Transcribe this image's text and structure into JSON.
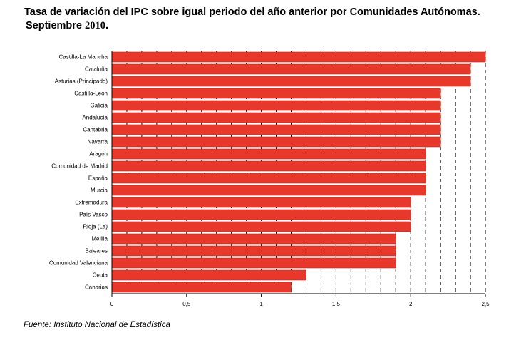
{
  "title": {
    "line1": "Tasa de variación del IPC sobre igual periodo del año anterior por Comunidades Autónomas.",
    "line2_prefix": "Septiembre ",
    "line2_year": "2010",
    "line2_suffix": "."
  },
  "source": "Fuente: Instituto Nacional de Estadística",
  "colors": {
    "bar": "#e8382c",
    "bar_border": "#c0281e",
    "grid": "#000000"
  },
  "chart_data": {
    "type": "bar",
    "orientation": "horizontal",
    "categories": [
      "Castilla-La Mancha",
      "Cataluña",
      "Asturias (Principado)",
      "Castilla-León",
      "Galicia",
      "Andalucía",
      "Cantabria",
      "Navarra",
      "Aragón",
      "Comunidad de Madrid",
      "España",
      "Murcia",
      "Extremadura",
      "País Vasco",
      "Rioja (La)",
      "Melilla",
      "Baleares",
      "Comunidad Valenciana",
      "Ceuta",
      "Canarias"
    ],
    "values": [
      2.5,
      2.4,
      2.4,
      2.2,
      2.2,
      2.2,
      2.2,
      2.2,
      2.1,
      2.1,
      2.1,
      2.1,
      2.0,
      2.0,
      2.0,
      1.9,
      1.9,
      1.9,
      1.3,
      1.2
    ],
    "xlim": [
      0,
      2.5
    ],
    "xticks": [
      0,
      0.5,
      1,
      1.5,
      2,
      2.5
    ],
    "xtick_labels": [
      "0",
      "0,5",
      "1",
      "1,5",
      "2",
      "2,5"
    ],
    "grid_step": 0.1,
    "grid": true,
    "grid_style": "dashed"
  }
}
